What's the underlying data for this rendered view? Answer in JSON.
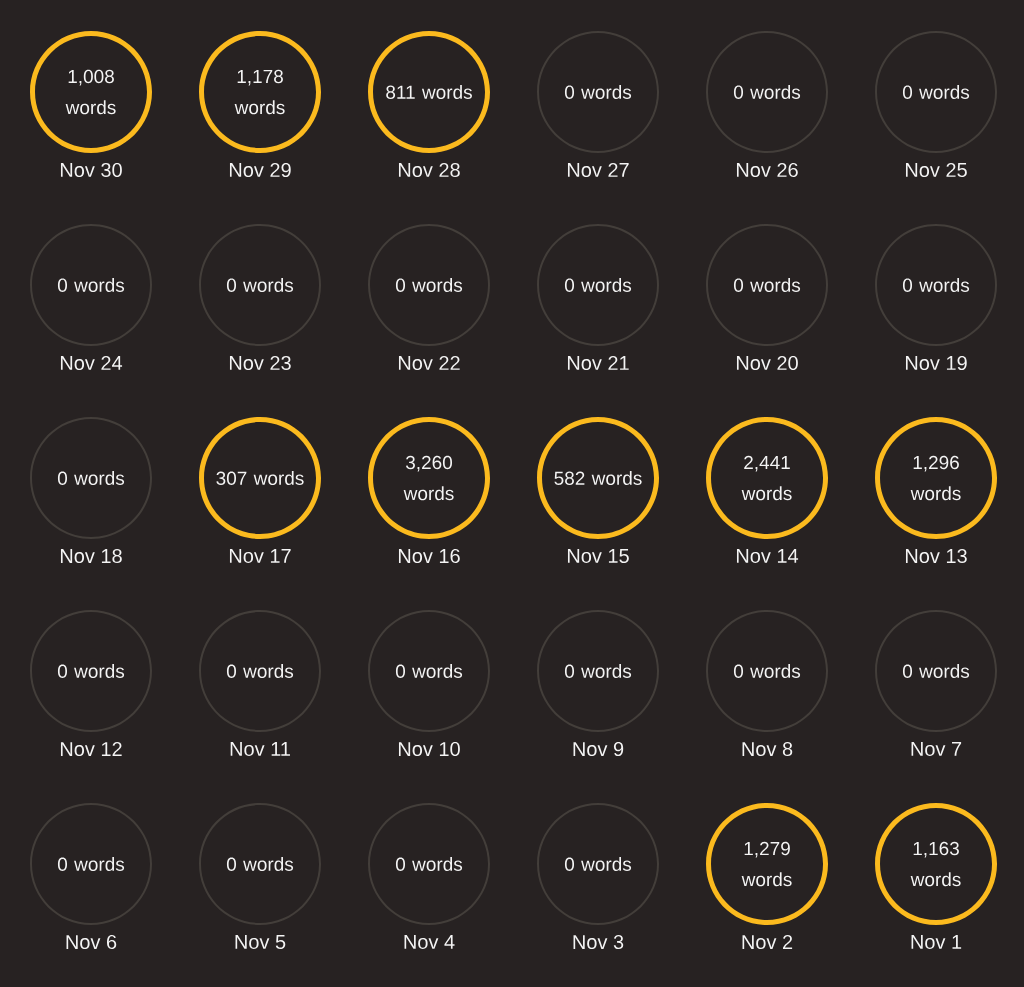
{
  "chart_data": {
    "type": "other",
    "categories": [
      "Nov 30",
      "Nov 29",
      "Nov 28",
      "Nov 27",
      "Nov 26",
      "Nov 25",
      "Nov 24",
      "Nov 23",
      "Nov 22",
      "Nov 21",
      "Nov 20",
      "Nov 19",
      "Nov 18",
      "Nov 17",
      "Nov 16",
      "Nov 15",
      "Nov 14",
      "Nov 13",
      "Nov 12",
      "Nov 11",
      "Nov 10",
      "Nov 9",
      "Nov 8",
      "Nov 7",
      "Nov 6",
      "Nov 5",
      "Nov 4",
      "Nov 3",
      "Nov 2",
      "Nov 1"
    ],
    "values": [
      1008,
      1178,
      811,
      0,
      0,
      0,
      0,
      0,
      0,
      0,
      0,
      0,
      0,
      307,
      3260,
      582,
      2441,
      1296,
      0,
      0,
      0,
      0,
      0,
      0,
      0,
      0,
      0,
      0,
      1279,
      1163
    ],
    "value_labels": [
      "1,008 words",
      "1,178 words",
      "811 words",
      "0 words",
      "0 words",
      "0 words",
      "0 words",
      "0 words",
      "0 words",
      "0 words",
      "0 words",
      "0 words",
      "0 words",
      "307 words",
      "3,260 words",
      "582 words",
      "2,441 words",
      "1,296 words",
      "0 words",
      "0 words",
      "0 words",
      "0 words",
      "0 words",
      "0 words",
      "0 words",
      "0 words",
      "0 words",
      "0 words",
      "1,279 words",
      "1,163 words"
    ],
    "colors": [
      "#fbba1e",
      "#fbba1e",
      "#fbba1e",
      "#433e3a",
      "#433e3a",
      "#433e3a",
      "#433e3a",
      "#433e3a",
      "#433e3a",
      "#433e3a",
      "#433e3a",
      "#433e3a",
      "#433e3a",
      "#fbba1e",
      "#fbba1e",
      "#fbba1e",
      "#fbba1e",
      "#fbba1e",
      "#433e3a",
      "#433e3a",
      "#433e3a",
      "#433e3a",
      "#433e3a",
      "#433e3a",
      "#433e3a",
      "#433e3a",
      "#433e3a",
      "#433e3a",
      "#fbba1e",
      "#fbba1e"
    ]
  }
}
